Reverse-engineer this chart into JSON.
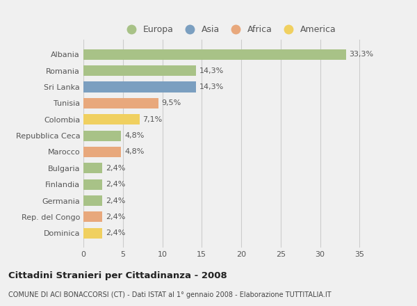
{
  "categories": [
    "Albania",
    "Romania",
    "Sri Lanka",
    "Tunisia",
    "Colombia",
    "Repubblica Ceca",
    "Marocco",
    "Bulgaria",
    "Finlandia",
    "Germania",
    "Rep. del Congo",
    "Dominica"
  ],
  "values": [
    33.3,
    14.3,
    14.3,
    9.5,
    7.1,
    4.8,
    4.8,
    2.4,
    2.4,
    2.4,
    2.4,
    2.4
  ],
  "labels": [
    "33,3%",
    "14,3%",
    "14,3%",
    "9,5%",
    "7,1%",
    "4,8%",
    "4,8%",
    "2,4%",
    "2,4%",
    "2,4%",
    "2,4%",
    "2,4%"
  ],
  "continents": [
    "Europa",
    "Europa",
    "Asia",
    "Africa",
    "America",
    "Europa",
    "Africa",
    "Europa",
    "Europa",
    "Europa",
    "Africa",
    "America"
  ],
  "colors": {
    "Europa": "#a8c287",
    "Asia": "#7b9fc0",
    "Africa": "#e8a87c",
    "America": "#f0d060"
  },
  "legend_order": [
    "Europa",
    "Asia",
    "Africa",
    "America"
  ],
  "title": "Cittadini Stranieri per Cittadinanza - 2008",
  "subtitle": "COMUNE DI ACI BONACCORSI (CT) - Dati ISTAT al 1° gennaio 2008 - Elaborazione TUTTITALIA.IT",
  "xlim": [
    0,
    37
  ],
  "xticks": [
    0,
    5,
    10,
    15,
    20,
    25,
    30,
    35
  ],
  "bg_color": "#f0f0f0",
  "plot_bg_color": "#f0f0f0",
  "grid_color": "#cccccc",
  "bar_label_color": "#555555",
  "ytick_color": "#555555"
}
